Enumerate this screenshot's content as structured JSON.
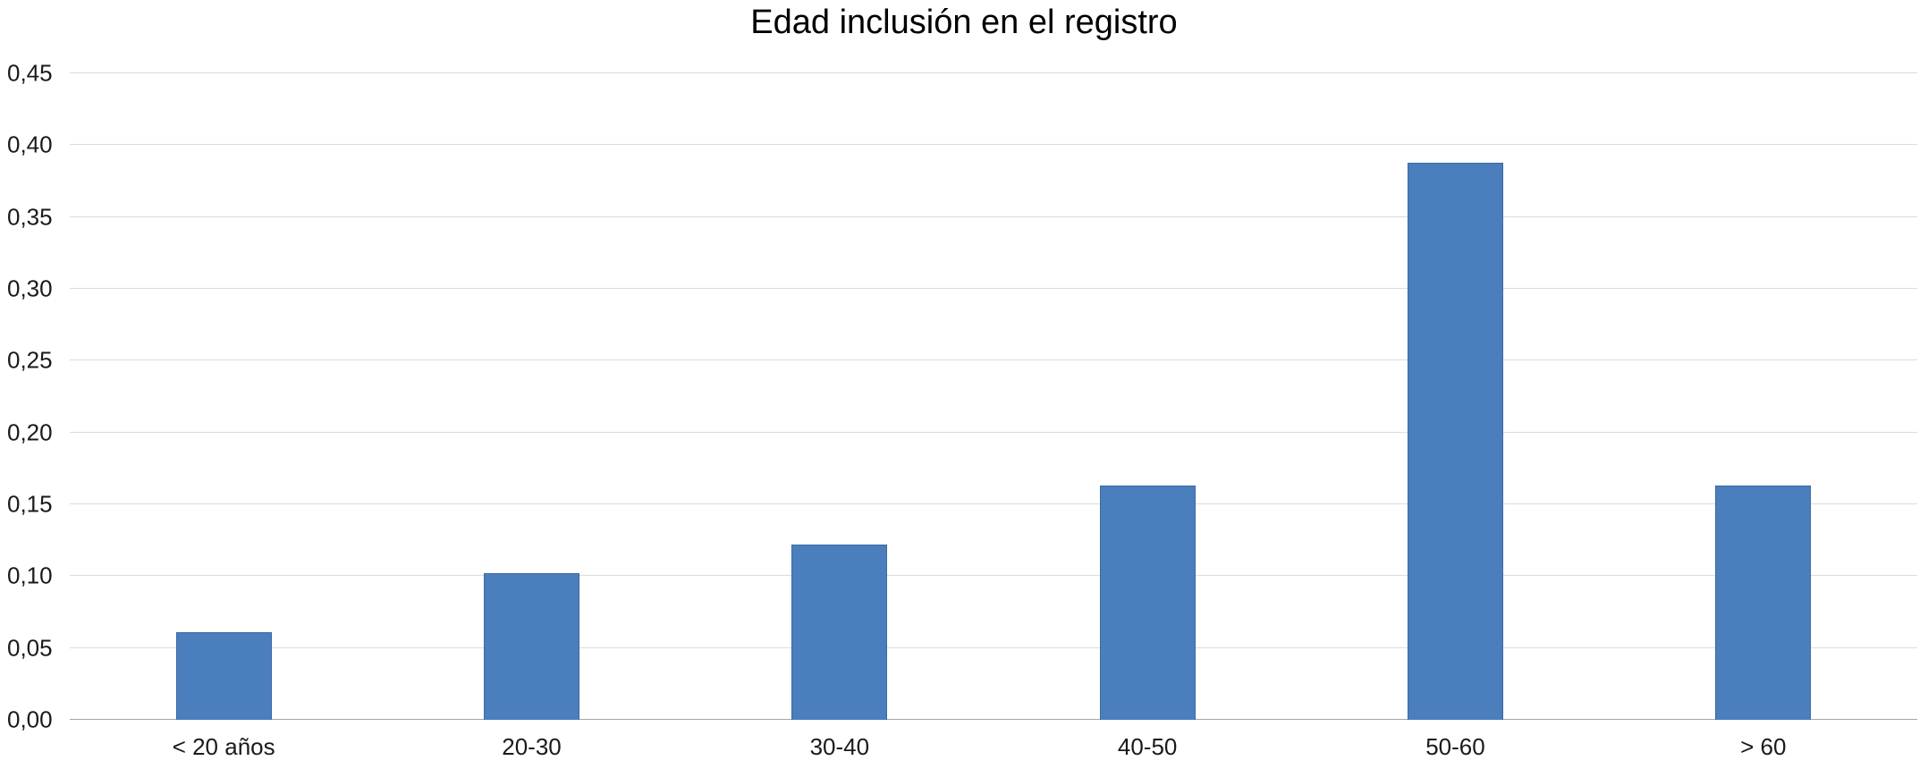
{
  "chart_data": {
    "type": "bar",
    "title": "Edad inclusión en el registro",
    "categories": [
      "< 20 años",
      "20-30",
      "30-40",
      "40-50",
      "50-60",
      "> 60"
    ],
    "values": [
      0.061,
      0.102,
      0.122,
      0.163,
      0.388,
      0.163
    ],
    "xlabel": "",
    "ylabel": "",
    "ylim": [
      0,
      0.45
    ],
    "yticks": [
      {
        "label": "0,00",
        "value": 0.0
      },
      {
        "label": "0,05",
        "value": 0.05
      },
      {
        "label": "0,10",
        "value": 0.1
      },
      {
        "label": "0,15",
        "value": 0.15
      },
      {
        "label": "0,20",
        "value": 0.2
      },
      {
        "label": "0,25",
        "value": 0.25
      },
      {
        "label": "0,30",
        "value": 0.3
      },
      {
        "label": "0,35",
        "value": 0.35
      },
      {
        "label": "0,40",
        "value": 0.4
      },
      {
        "label": "0,45",
        "value": 0.45
      }
    ],
    "grid": true,
    "legend": "none",
    "bar_color": "#4a7ebd",
    "bar_border_color": "#3d69a3",
    "gridline_color": "#dcdcdc",
    "baseline_color": "#a6a6a6",
    "background_color": "#ffffff"
  }
}
